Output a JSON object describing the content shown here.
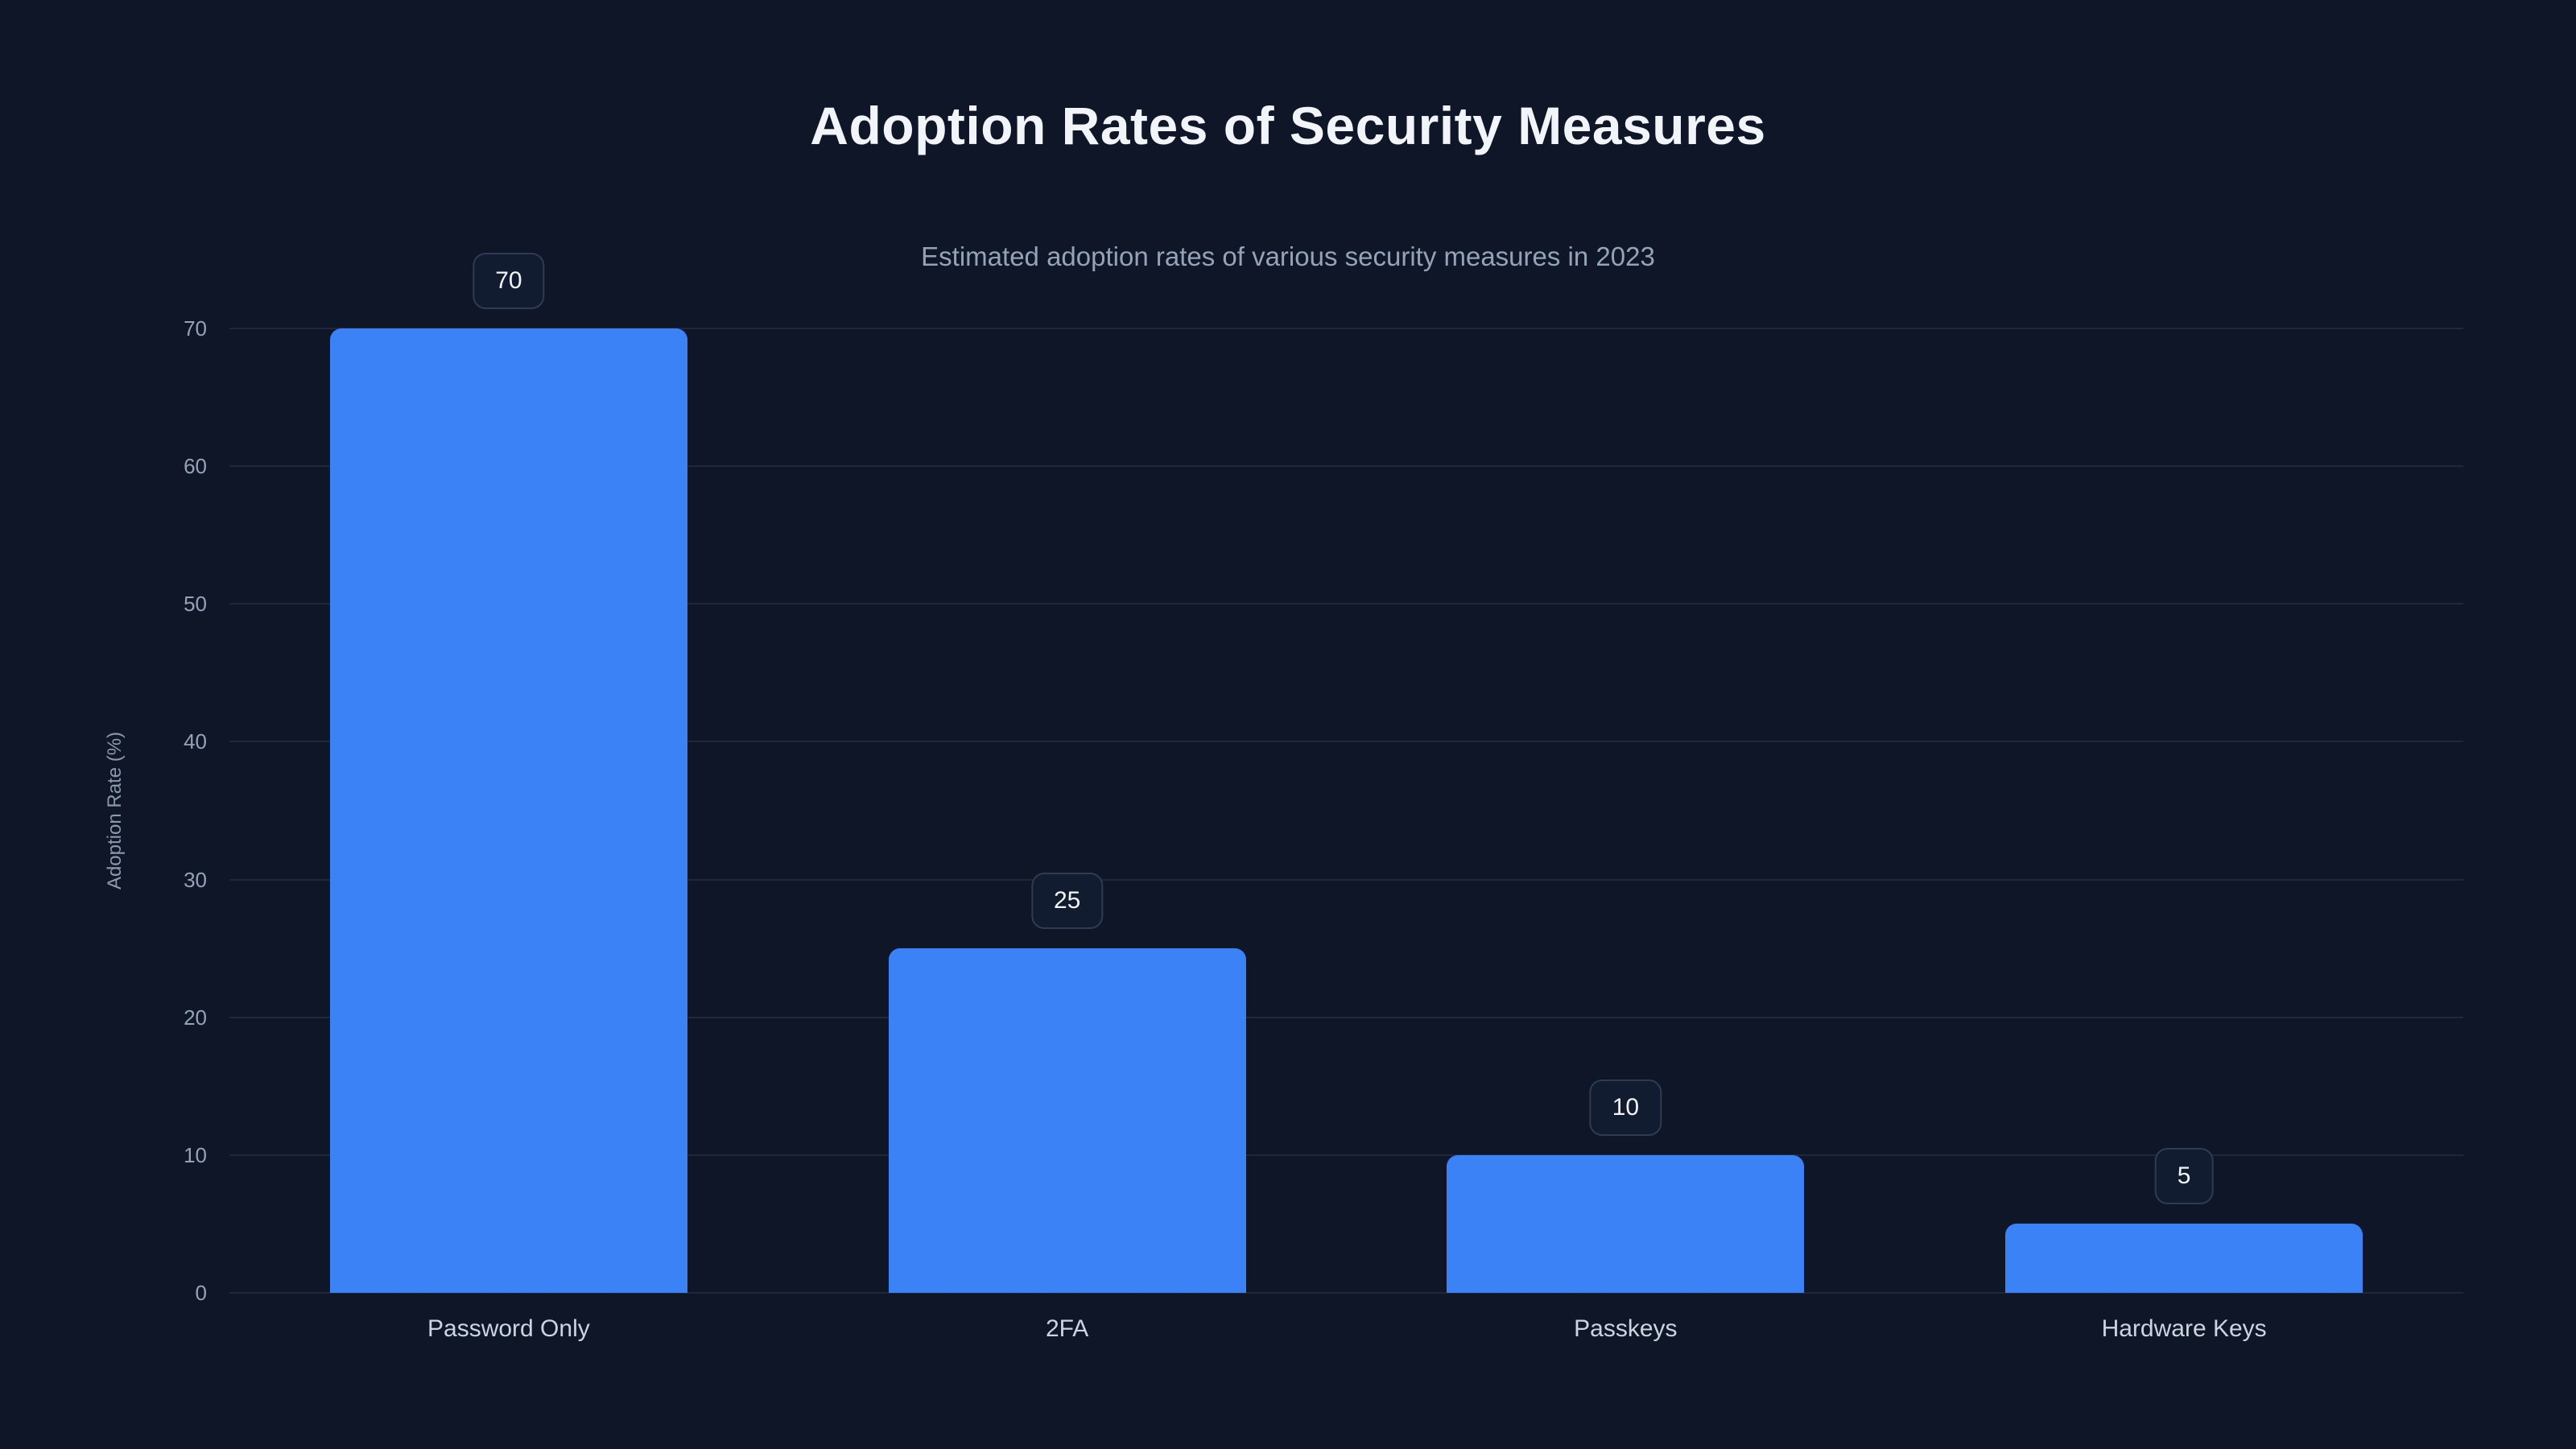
{
  "chart": {
    "title": "Adoption Rates of Security Measures",
    "subtitle": "Estimated adoption rates of various security measures in 2023",
    "ylabel": "Adoption Rate (%)"
  },
  "chart_data": {
    "type": "bar",
    "title": "Adoption Rates of Security Measures",
    "subtitle": "Estimated adoption rates of various security measures in 2023",
    "categories": [
      "Password Only",
      "2FA",
      "Passkeys",
      "Hardware Keys"
    ],
    "values": [
      70,
      25,
      10,
      5
    ],
    "data_labels": [
      "70",
      "25",
      "10",
      "5"
    ],
    "xlabel": "",
    "ylabel": "Adoption Rate (%)",
    "ylim": [
      0,
      70
    ],
    "yticks": [
      0,
      10,
      20,
      30,
      40,
      50,
      60,
      70
    ],
    "grid": true,
    "legend": false,
    "bar_color": "#3b82f6",
    "background_color": "#0e1627",
    "bar_width_fraction": 0.64
  }
}
